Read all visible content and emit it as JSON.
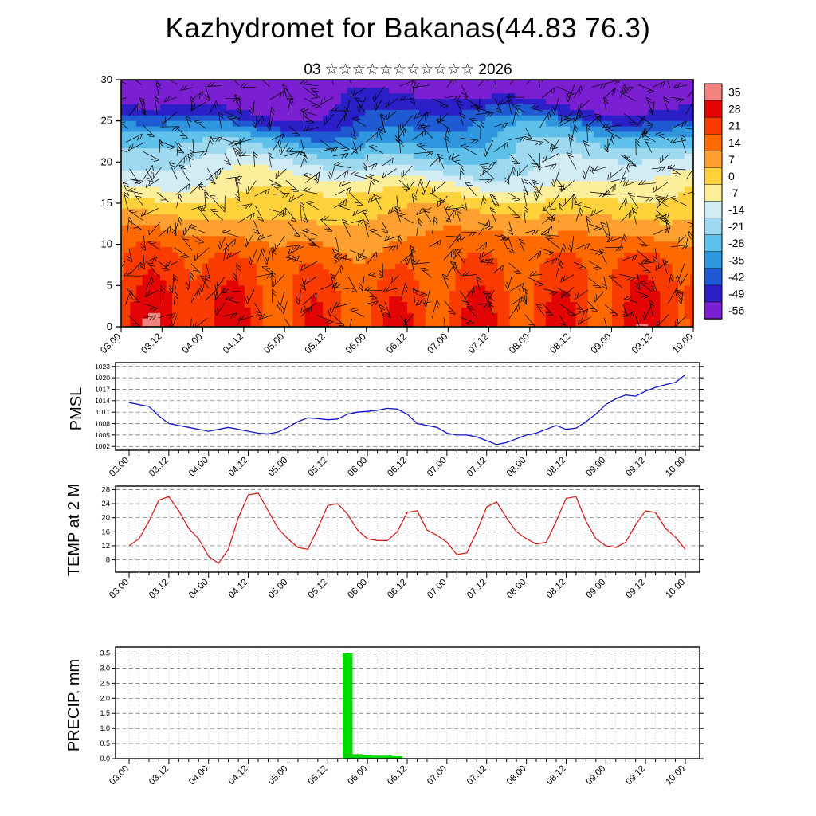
{
  "title": "Kazhydromet for Bakanas(44.83 76.3)",
  "subtitle": "03 ☆☆☆☆☆☆☆☆☆☆☆ 2026",
  "time_labels": [
    "03.00",
    "03.12",
    "04.00",
    "04.12",
    "05.00",
    "05.12",
    "06.00",
    "06.12",
    "07.00",
    "07.12",
    "08.00",
    "08.12",
    "09.00",
    "09.12",
    "10.00"
  ],
  "panels": {
    "pmsl": {
      "label": "PMSL"
    },
    "temp": {
      "label": "TEMP at 2 M"
    },
    "precip": {
      "label": "PRECIP, mm"
    }
  },
  "chart_data": [
    {
      "type": "heatmap",
      "name": "upper-air-temperature-cross-section",
      "description": "Time-height cross-section of temperature shading overlaid with wind barbs",
      "x_start": "03.00",
      "x_end": "10.00",
      "x_step_hours": 3,
      "ylim": [
        0,
        30
      ],
      "y_ticks": [
        0,
        5,
        10,
        15,
        20,
        25,
        30
      ],
      "colorbar": {
        "levels": [
          35,
          28,
          21,
          14,
          7,
          0,
          -7,
          -14,
          -21,
          -28,
          -35,
          -42,
          -49,
          -56
        ],
        "colors": [
          "#f2837f",
          "#e30505",
          "#fa3b00",
          "#ff6a00",
          "#ffa030",
          "#ffd23c",
          "#fdee9c",
          "#d2ecf6",
          "#9fd9f0",
          "#5fc0ea",
          "#2f96e0",
          "#1f5ad2",
          "#2b1fc8",
          "#7a1fd2"
        ]
      }
    },
    {
      "type": "line",
      "name": "pmsl",
      "title": "PMSL",
      "color": "#1515cc",
      "ylim": [
        1001,
        1024
      ],
      "y_ticks": [
        1002,
        1005,
        1008,
        1011,
        1014,
        1017,
        1020,
        1023
      ],
      "x_start": "03.00",
      "x_end": "10.00",
      "x_step_hours": 3,
      "values": [
        1013.5,
        1013,
        1012.5,
        1010,
        1008,
        1007.5,
        1007,
        1006.5,
        1006,
        1006.5,
        1007,
        1006.5,
        1006,
        1005.5,
        1005.3,
        1005.8,
        1007,
        1008.5,
        1009.5,
        1009.3,
        1009,
        1009.2,
        1010.5,
        1011,
        1011.2,
        1011.5,
        1012,
        1011.8,
        1010.5,
        1008,
        1007.5,
        1007,
        1005.5,
        1005,
        1005,
        1004.5,
        1003.5,
        1002.5,
        1003,
        1004,
        1005,
        1005.5,
        1006.5,
        1007.5,
        1006.5,
        1006.8,
        1008.5,
        1010.5,
        1013,
        1014.5,
        1015.5,
        1015.2,
        1016.5,
        1017.5,
        1018.2,
        1018.8,
        1020.8
      ]
    },
    {
      "type": "line",
      "name": "temp-2m",
      "title": "TEMP at 2 M",
      "color": "#d42020",
      "ylim": [
        4.5,
        29
      ],
      "y_ticks": [
        8,
        12,
        16,
        20,
        24,
        28
      ],
      "x_start": "03.00",
      "x_end": "10.00",
      "x_step_hours": 3,
      "values": [
        12,
        14,
        19,
        25,
        26,
        22,
        17,
        14,
        9,
        7,
        11,
        20,
        26.5,
        27,
        22,
        17,
        14,
        11.5,
        11,
        17,
        23.5,
        24,
        21,
        16.5,
        14,
        13.5,
        13.5,
        16,
        21.5,
        22,
        16.5,
        15,
        13,
        9.5,
        10,
        16,
        23,
        24.5,
        20,
        16,
        14,
        12.5,
        13,
        19,
        25.5,
        26,
        19,
        14,
        12,
        11.5,
        13,
        18,
        22,
        21.5,
        17,
        14.5,
        11
      ]
    },
    {
      "type": "bar",
      "name": "precip",
      "title": "PRECIP, mm",
      "color": "#00d900",
      "ylim": [
        0,
        3.7
      ],
      "y_ticks": [
        0,
        0.5,
        1,
        1.5,
        2,
        2.5,
        3,
        3.5
      ],
      "x_start": "03.00",
      "x_end": "10.00",
      "x_step_hours": 3,
      "values": [
        0,
        0,
        0,
        0,
        0,
        0,
        0,
        0,
        0,
        0,
        0,
        0,
        0,
        0,
        0,
        0,
        0,
        0,
        0,
        0,
        0,
        0,
        3.5,
        0.15,
        0.12,
        0.1,
        0.1,
        0.08,
        0,
        0,
        0,
        0,
        0,
        0,
        0,
        0,
        0,
        0,
        0,
        0,
        0,
        0,
        0,
        0,
        0,
        0,
        0,
        0,
        0,
        0,
        0,
        0,
        0,
        0,
        0,
        0,
        0
      ]
    }
  ]
}
